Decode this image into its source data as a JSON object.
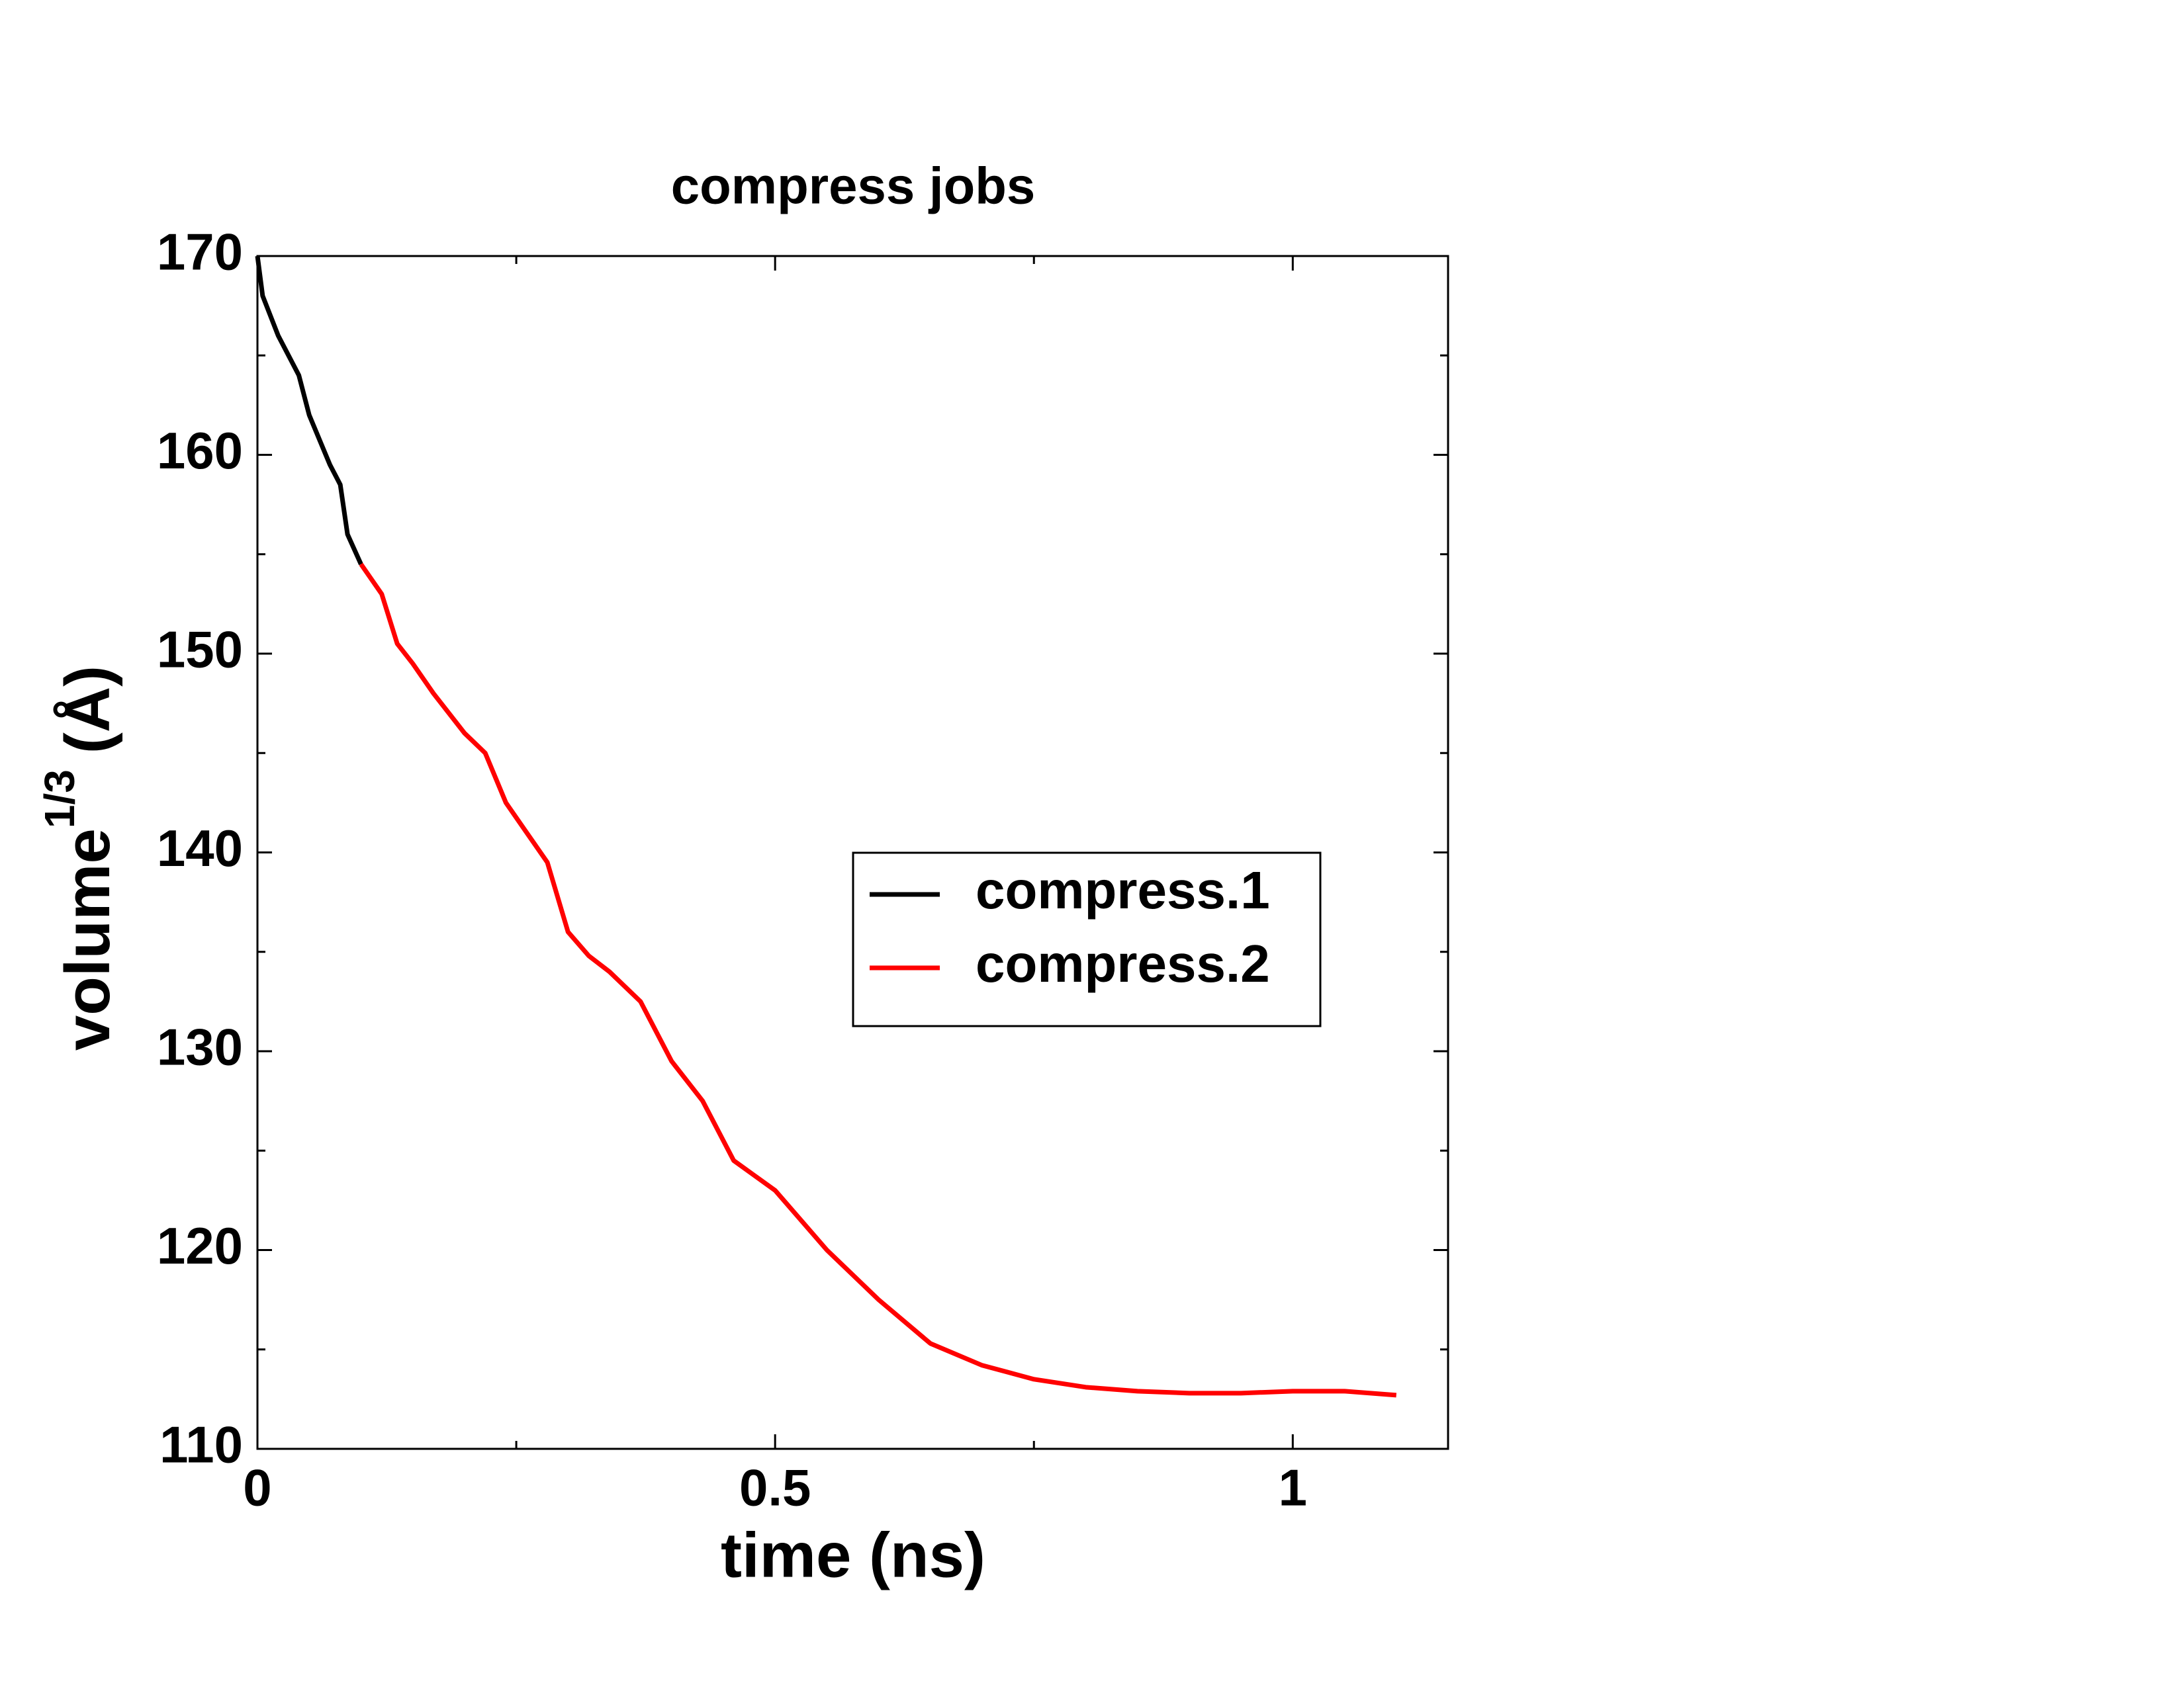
{
  "chart_data": {
    "type": "line",
    "title": "compress jobs",
    "xlabel": "time (ns)",
    "ylabel": {
      "text": "volume",
      "sup": "1/3",
      "unit": "(Å)"
    },
    "xlim": [
      0,
      1.15
    ],
    "ylim": [
      110,
      170
    ],
    "xticks": [
      0,
      0.5,
      1
    ],
    "yticks": [
      110,
      120,
      130,
      140,
      150,
      160,
      170
    ],
    "xminorticks": [
      0.25,
      0.75
    ],
    "yminorticks": [
      115,
      125,
      135,
      145,
      155,
      165
    ],
    "legend": "center-right",
    "series": [
      {
        "name": "compress.1",
        "color": "#000000",
        "x": [
          0,
          0.005,
          0.02,
          0.04,
          0.05,
          0.07,
          0.08,
          0.087,
          0.1
        ],
        "values": [
          170,
          168,
          166,
          164,
          162,
          159.5,
          158.5,
          156,
          154.5
        ]
      },
      {
        "name": "compress.2",
        "color": "#ff0000",
        "x": [
          0.1,
          0.12,
          0.135,
          0.15,
          0.17,
          0.2,
          0.22,
          0.24,
          0.26,
          0.28,
          0.3,
          0.32,
          0.34,
          0.37,
          0.4,
          0.43,
          0.46,
          0.5,
          0.55,
          0.6,
          0.65,
          0.7,
          0.75,
          0.8,
          0.85,
          0.9,
          0.95,
          1.0,
          1.05,
          1.1
        ],
        "values": [
          154.5,
          153,
          150.5,
          149.5,
          148,
          146,
          145,
          142.5,
          141,
          139.5,
          136,
          134.8,
          134,
          132.5,
          129.5,
          127.5,
          124.5,
          123,
          120,
          117.5,
          115.3,
          114.2,
          113.5,
          113.1,
          112.9,
          112.8,
          112.8,
          112.9,
          112.9,
          112.7
        ]
      }
    ]
  }
}
